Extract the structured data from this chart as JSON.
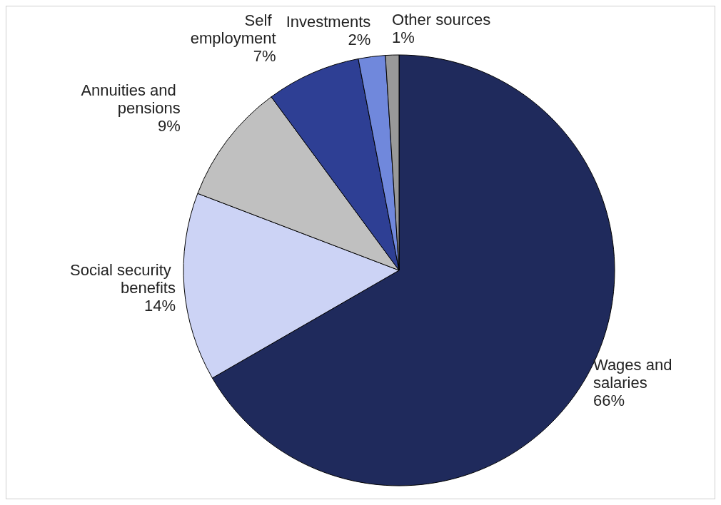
{
  "chart_data": {
    "type": "pie",
    "categories": [
      "Wages and salaries",
      "Social security benefits",
      "Annuities and pensions",
      "Self employment",
      "Investments",
      "Other sources"
    ],
    "values": [
      66,
      14,
      9,
      7,
      2,
      1
    ],
    "value_labels": [
      "66%",
      "14%",
      "9%",
      "7%",
      "2%",
      "1%"
    ],
    "colors": [
      "#1f2a5c",
      "#ccd3f5",
      "#c0c0c0",
      "#2e3f94",
      "#7088dc",
      "#999999"
    ],
    "legend": false
  }
}
